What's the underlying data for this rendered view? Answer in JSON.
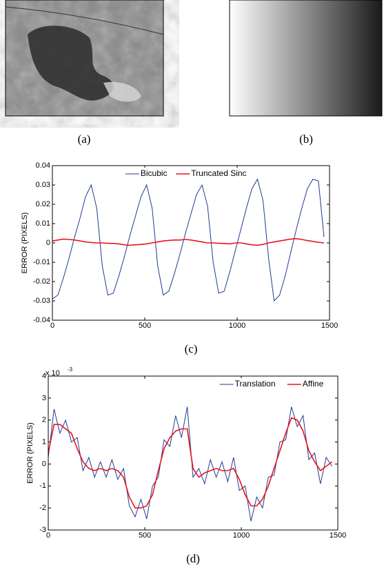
{
  "panels": [
    {
      "caption": "(a)"
    },
    {
      "caption": "(b)"
    }
  ],
  "chart_data": [
    {
      "type": "line",
      "caption": "(c)",
      "y_label": "ERROR (PIXELS)",
      "x": [
        0,
        30,
        60,
        90,
        120,
        150,
        180,
        210,
        240,
        270,
        300,
        330,
        360,
        390,
        420,
        450,
        480,
        510,
        540,
        570,
        600,
        630,
        660,
        690,
        720,
        750,
        780,
        810,
        840,
        870,
        900,
        930,
        960,
        990,
        1020,
        1050,
        1080,
        1110,
        1140,
        1170,
        1200,
        1230,
        1260,
        1290,
        1320,
        1350,
        1380,
        1410,
        1440,
        1470
      ],
      "series": [
        {
          "name": "Bicubic",
          "color": "#1f3a93",
          "values": [
            -0.029,
            -0.027,
            -0.018,
            -0.008,
            0.003,
            0.013,
            0.024,
            0.03,
            0.018,
            -0.012,
            -0.027,
            -0.026,
            -0.017,
            -0.007,
            0.004,
            0.014,
            0.024,
            0.03,
            0.018,
            -0.012,
            -0.027,
            -0.025,
            -0.016,
            -0.006,
            0.005,
            0.015,
            0.025,
            0.03,
            0.019,
            -0.01,
            -0.026,
            -0.025,
            -0.015,
            -0.004,
            0.007,
            0.018,
            0.028,
            0.033,
            0.022,
            -0.008,
            -0.03,
            -0.027,
            -0.017,
            -0.005,
            0.007,
            0.018,
            0.028,
            0.033,
            0.032,
            0.003
          ]
        },
        {
          "name": "Truncated Sinc",
          "color": "#e8141b",
          "values": [
            0.001,
            0.0015,
            0.002,
            0.0018,
            0.0015,
            0.001,
            0.0005,
            0.0002,
            0,
            0,
            -0.0002,
            -0.0003,
            -0.0005,
            -0.001,
            -0.0012,
            -0.001,
            -0.0008,
            -0.0005,
            0,
            0.0005,
            0.001,
            0.0013,
            0.0015,
            0.0015,
            0.0018,
            0.0015,
            0.001,
            0.0005,
            0,
            0,
            -0.0002,
            -0.0003,
            -0.0005,
            0,
            0,
            -0.0005,
            -0.001,
            -0.0012,
            -0.0008,
            0,
            0.0005,
            0.001,
            0.0015,
            0.002,
            0.0022,
            0.0018,
            0.0012,
            0.0008,
            0.0003,
            0
          ]
        }
      ],
      "xlim": [
        0,
        1500
      ],
      "xticks": [
        0,
        500,
        1000,
        1500
      ],
      "ylim": [
        -0.04,
        0.04
      ],
      "yticks": [
        -0.04,
        -0.03,
        -0.02,
        -0.01,
        0,
        0.01,
        0.02,
        0.03,
        0.04
      ],
      "legend": "top-center"
    },
    {
      "type": "line",
      "caption": "(d)",
      "y_label": "ERROR (PIXELS)",
      "y_scale_base": "x 10",
      "y_scale_exponent": "-3",
      "x": [
        0,
        30,
        60,
        90,
        120,
        150,
        180,
        210,
        240,
        270,
        300,
        330,
        360,
        390,
        420,
        450,
        480,
        510,
        540,
        570,
        600,
        630,
        660,
        690,
        720,
        750,
        780,
        810,
        840,
        870,
        900,
        930,
        960,
        990,
        1020,
        1050,
        1080,
        1110,
        1140,
        1170,
        1200,
        1230,
        1260,
        1290,
        1320,
        1350,
        1380,
        1410,
        1440,
        1470
      ],
      "series": [
        {
          "name": "Translation",
          "color": "#1f3a93",
          "values": [
            0.3,
            2.5,
            1.4,
            2.0,
            1.0,
            1.2,
            -0.3,
            0.3,
            -0.6,
            0.1,
            -0.6,
            0.2,
            -0.7,
            -0.2,
            -1.9,
            -2.4,
            -1.6,
            -2.5,
            -1.0,
            -0.6,
            1.1,
            0.8,
            2.2,
            1.2,
            2.6,
            -0.6,
            -0.2,
            -0.9,
            0.2,
            -0.6,
            0.1,
            -0.8,
            0.3,
            -1.2,
            -1.0,
            -2.6,
            -1.5,
            -2.0,
            -0.6,
            -0.5,
            1.0,
            1.1,
            2.6,
            1.7,
            2.2,
            0.2,
            0.5,
            -0.9,
            0.3,
            -0.1
          ]
        },
        {
          "name": "Affine",
          "color": "#e8141b",
          "values": [
            0.5,
            1.8,
            1.8,
            1.6,
            1.4,
            0.7,
            0.1,
            -0.2,
            -0.3,
            -0.2,
            -0.3,
            -0.2,
            -0.3,
            -0.6,
            -1.5,
            -2.0,
            -2.0,
            -1.9,
            -1.4,
            -0.3,
            0.7,
            1.2,
            1.5,
            1.6,
            1.6,
            -0.2,
            -0.6,
            -0.4,
            -0.3,
            -0.2,
            -0.3,
            -0.3,
            -0.2,
            -0.7,
            -1.4,
            -1.9,
            -1.9,
            -1.6,
            -1.0,
            -0.2,
            0.6,
            1.4,
            2.1,
            2.0,
            1.5,
            0.6,
            0.1,
            -0.3,
            -0.1,
            0.1
          ]
        }
      ],
      "xlim": [
        0,
        1500
      ],
      "xticks": [
        0,
        500,
        1000,
        1500
      ],
      "ylim": [
        -3,
        4
      ],
      "yticks": [
        -3,
        -2,
        -1,
        0,
        1,
        2,
        3,
        4
      ],
      "legend": "top-right"
    }
  ]
}
